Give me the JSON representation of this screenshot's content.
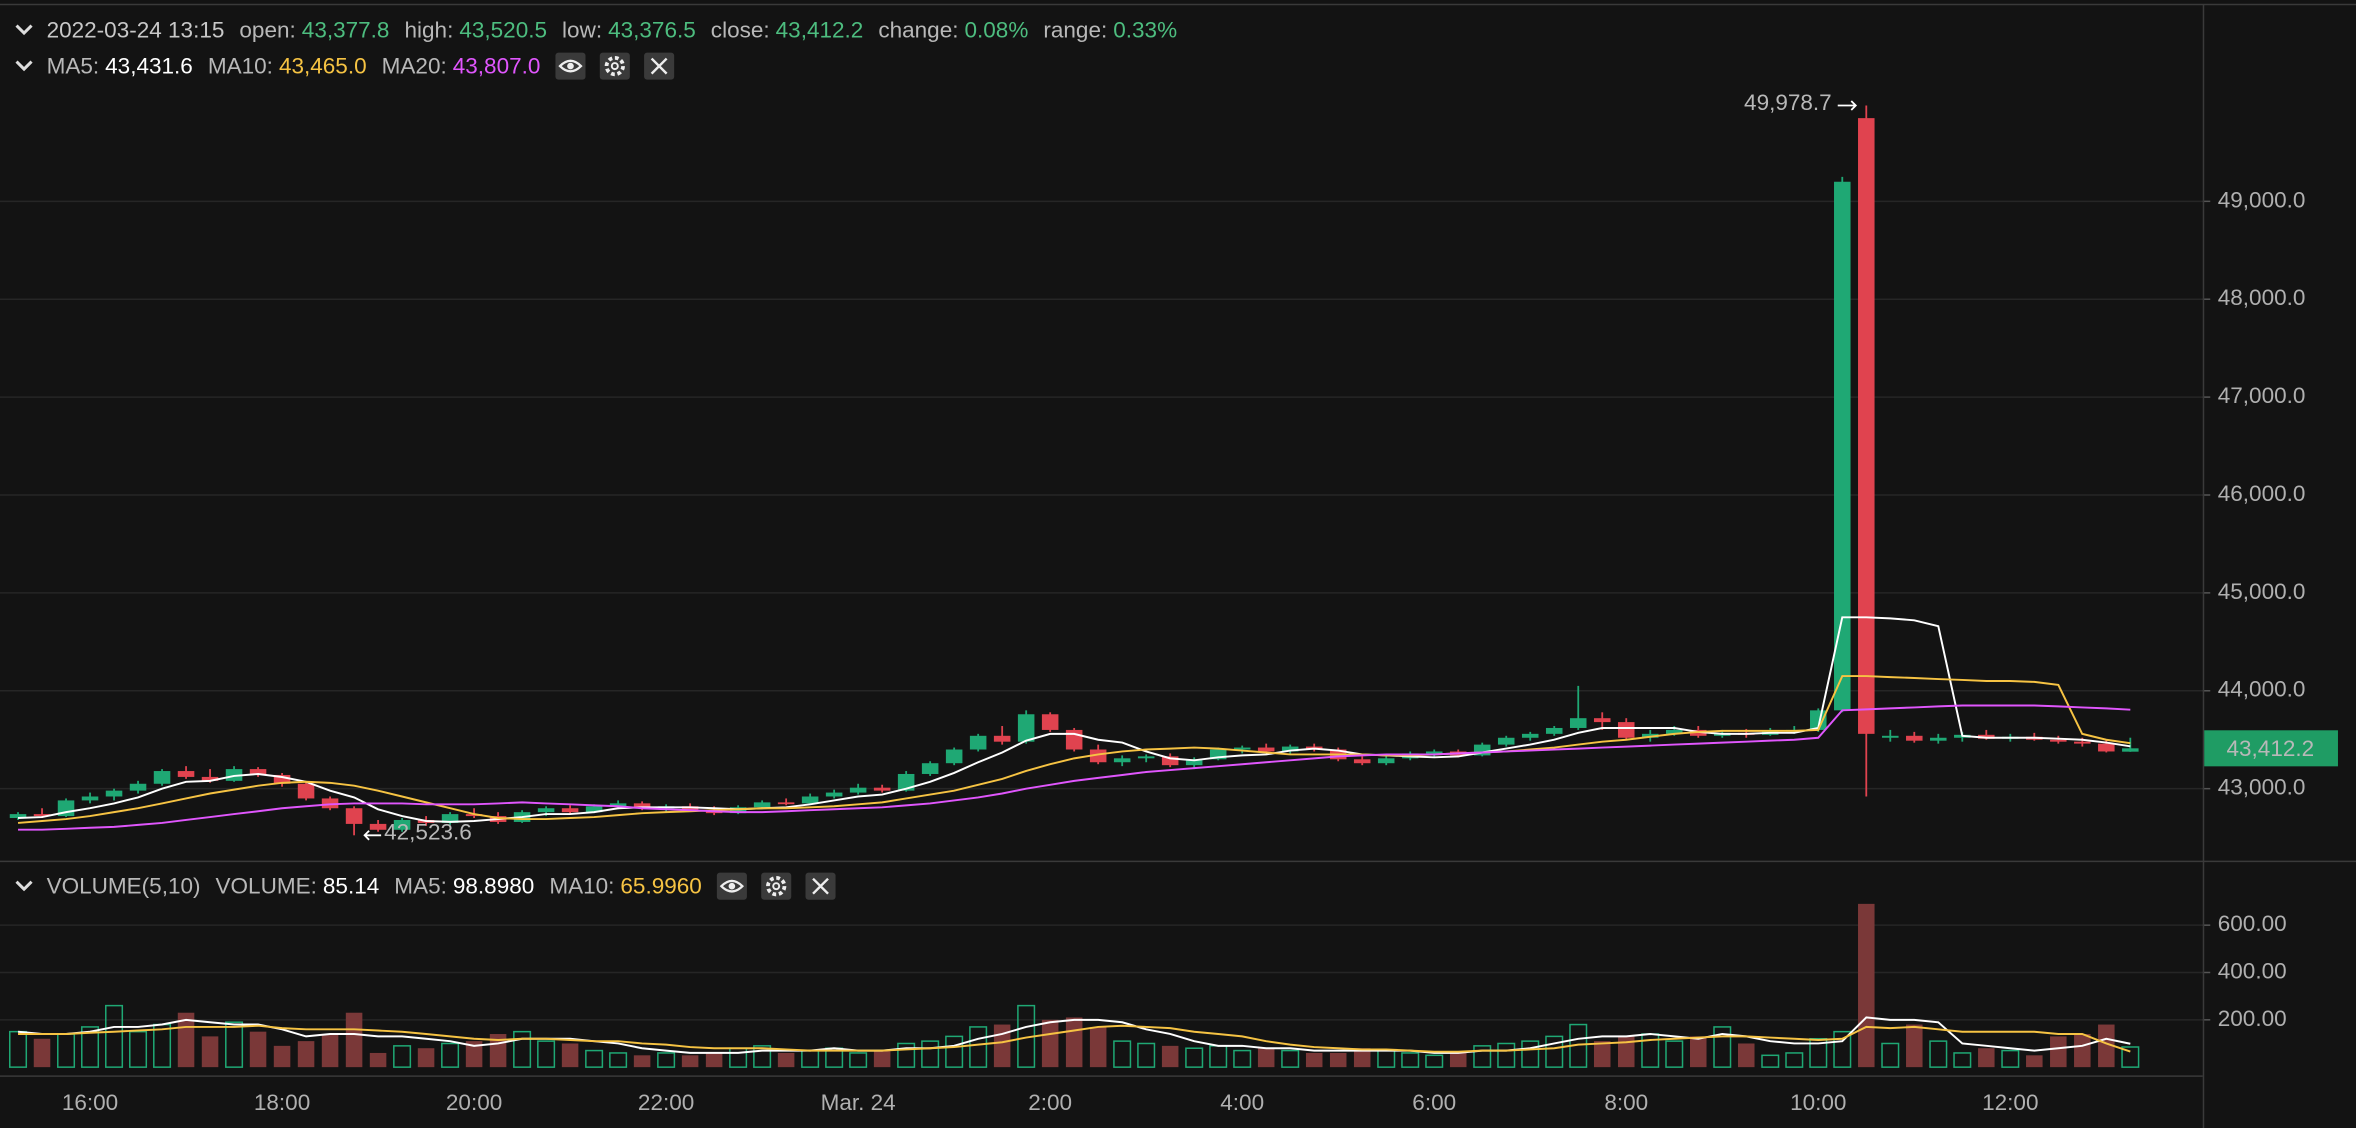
{
  "chart_data": {
    "type": "candlestick",
    "header": {
      "datetime": "2022-03-24 13:15",
      "value_color": "#4dbd7f",
      "fields": [
        {
          "label": "open:",
          "value": "43,377.8"
        },
        {
          "label": "high:",
          "value": "43,520.5"
        },
        {
          "label": "low:",
          "value": "43,376.5"
        },
        {
          "label": "close:",
          "value": "43,412.2"
        },
        {
          "label": "change:",
          "value": "0.08%"
        },
        {
          "label": "range:",
          "value": "0.33%"
        }
      ]
    },
    "up_color": "#1fa874",
    "down_color": "#e0434f",
    "volume_up_color": "#1fa874",
    "volume_down_color": "#7a3838",
    "categories": [
      null,
      null,
      null,
      "16:00",
      null,
      null,
      null,
      null,
      null,
      null,
      null,
      "18:00",
      null,
      null,
      null,
      null,
      null,
      null,
      null,
      "20:00",
      null,
      null,
      null,
      null,
      null,
      null,
      null,
      "22:00",
      null,
      null,
      null,
      null,
      null,
      null,
      null,
      "Mar. 24",
      null,
      null,
      null,
      null,
      null,
      null,
      null,
      "2:00",
      null,
      null,
      null,
      null,
      null,
      null,
      null,
      "4:00",
      null,
      null,
      null,
      null,
      null,
      null,
      null,
      "6:00",
      null,
      null,
      null,
      null,
      null,
      null,
      null,
      "8:00",
      null,
      null,
      null,
      null,
      null,
      null,
      null,
      "10:00",
      null,
      null,
      null,
      null,
      null,
      null,
      null,
      "12:00",
      null,
      null,
      null,
      null,
      null
    ],
    "open": [
      42700,
      42740,
      42720,
      42880,
      42920,
      42980,
      43050,
      43180,
      43120,
      43080,
      43200,
      43140,
      43050,
      42900,
      42800,
      42640,
      42580,
      42680,
      42650,
      42740,
      42720,
      42660,
      42760,
      42800,
      42760,
      42820,
      42850,
      42800,
      42820,
      42780,
      42750,
      42810,
      42860,
      42850,
      42920,
      42960,
      43010,
      42980,
      43150,
      43260,
      43400,
      43540,
      43480,
      43760,
      43600,
      43400,
      43270,
      43310,
      43330,
      43240,
      43300,
      43400,
      43420,
      43380,
      43430,
      43400,
      43300,
      43260,
      43310,
      43360,
      43380,
      43340,
      43450,
      43520,
      43560,
      43620,
      43720,
      43680,
      43520,
      43560,
      43600,
      43540,
      43570,
      43550,
      43590,
      43600,
      43800,
      49850,
      43520,
      43540,
      43490,
      43520,
      43550,
      43510,
      43530,
      43500,
      43480,
      43460,
      43377.8
    ],
    "high": [
      42760,
      42800,
      42900,
      42960,
      43000,
      43080,
      43200,
      43230,
      43200,
      43230,
      43220,
      43160,
      43070,
      42920,
      42820,
      42680,
      42700,
      42720,
      42760,
      42800,
      42760,
      42780,
      42820,
      42830,
      42840,
      42880,
      42870,
      42840,
      42850,
      42820,
      42830,
      42880,
      42900,
      42950,
      42990,
      43050,
      43040,
      43180,
      43280,
      43420,
      43560,
      43640,
      43800,
      43780,
      43620,
      43450,
      43340,
      43350,
      43360,
      43320,
      43420,
      43440,
      43460,
      43450,
      43460,
      43420,
      43330,
      43330,
      43380,
      43400,
      43400,
      43470,
      43540,
      43580,
      43640,
      44050,
      43780,
      43720,
      43600,
      43640,
      43640,
      43600,
      43610,
      43620,
      43640,
      43820,
      49250,
      49978.7,
      43600,
      43580,
      43560,
      43580,
      43600,
      43560,
      43570,
      43540,
      43520,
      43500,
      43520.5
    ],
    "low": [
      42680,
      42700,
      42710,
      42850,
      42880,
      42950,
      43030,
      43100,
      43060,
      43070,
      43120,
      43020,
      42880,
      42780,
      42523.6,
      42560,
      42560,
      42620,
      42630,
      42700,
      42640,
      42650,
      42720,
      42740,
      42750,
      42790,
      42780,
      42760,
      42770,
      42730,
      42740,
      42790,
      42830,
      42840,
      42900,
      42940,
      42960,
      42970,
      43130,
      43240,
      43380,
      43450,
      43460,
      43580,
      43380,
      43250,
      43230,
      43270,
      43220,
      43200,
      43290,
      43360,
      43360,
      43350,
      43380,
      43280,
      43240,
      43240,
      43290,
      43320,
      43320,
      43330,
      43430,
      43490,
      43540,
      43600,
      43600,
      43500,
      43480,
      43540,
      43520,
      43520,
      43520,
      43540,
      43560,
      43580,
      43780,
      42920,
      43480,
      43470,
      43460,
      43480,
      43500,
      43480,
      43490,
      43460,
      43430,
      43370,
      43376.5
    ],
    "close": [
      42740,
      42720,
      42880,
      42920,
      42980,
      43050,
      43180,
      43120,
      43080,
      43200,
      43140,
      43050,
      42900,
      42800,
      42640,
      42580,
      42680,
      42650,
      42740,
      42720,
      42660,
      42760,
      42800,
      42760,
      42820,
      42850,
      42800,
      42820,
      42780,
      42750,
      42810,
      42860,
      42850,
      42920,
      42960,
      43010,
      42980,
      43150,
      43260,
      43400,
      43540,
      43480,
      43760,
      43600,
      43400,
      43270,
      43310,
      43330,
      43240,
      43300,
      43400,
      43420,
      43380,
      43430,
      43400,
      43300,
      43260,
      43310,
      43360,
      43380,
      43340,
      43450,
      43520,
      43560,
      43620,
      43720,
      43680,
      43520,
      43560,
      43600,
      43540,
      43570,
      43550,
      43590,
      43600,
      43800,
      49200,
      43560,
      43540,
      43490,
      43520,
      43550,
      43510,
      43530,
      43500,
      43480,
      43460,
      43380,
      43412.2
    ],
    "ylim": [
      42280,
      50980
    ],
    "yticks": [
      {
        "value": 43000,
        "label": "43,000.0"
      },
      {
        "value": 44000,
        "label": "44,000.0"
      },
      {
        "value": 45000,
        "label": "45,000.0"
      },
      {
        "value": 46000,
        "label": "46,000.0"
      },
      {
        "value": 47000,
        "label": "47,000.0"
      },
      {
        "value": 48000,
        "label": "48,000.0"
      },
      {
        "value": 49000,
        "label": "49,000.0"
      }
    ],
    "grid": true,
    "annotations": {
      "high_label": "49,978.7",
      "low_label": "42,523.6",
      "last_price": "43,412.2",
      "last_price_color": "#1f9c64"
    },
    "ma": [
      {
        "label": "MA5:",
        "value_text": "43,431.6",
        "color": "#ffffff",
        "values": [
          42700,
          42710,
          42760,
          42800,
          42850,
          42910,
          43000,
          43070,
          43080,
          43130,
          43150,
          43120,
          43070,
          42980,
          42910,
          42790,
          42720,
          42670,
          42660,
          42670,
          42690,
          42710,
          42740,
          42740,
          42760,
          42800,
          42810,
          42810,
          42810,
          42800,
          42790,
          42800,
          42810,
          42840,
          42880,
          42920,
          42940,
          43000,
          43070,
          43160,
          43270,
          43370,
          43490,
          43560,
          43560,
          43500,
          43470,
          43380,
          43310,
          43290,
          43320,
          43340,
          43350,
          43390,
          43410,
          43390,
          43350,
          43340,
          43330,
          43320,
          43330,
          43370,
          43410,
          43450,
          43500,
          43570,
          43620,
          43620,
          43620,
          43620,
          43580,
          43560,
          43560,
          43570,
          43570,
          43620,
          44750,
          44750,
          44740,
          44720,
          44660,
          43540,
          43520,
          43520,
          43520,
          43510,
          43500,
          43470,
          43431.6
        ]
      },
      {
        "label": "MA10:",
        "value_text": "43,465.0",
        "color": "#f6c343",
        "values": [
          42650,
          42670,
          42690,
          42720,
          42760,
          42800,
          42850,
          42900,
          42950,
          42990,
          43030,
          43060,
          43070,
          43060,
          43030,
          42980,
          42920,
          42860,
          42800,
          42740,
          42700,
          42690,
          42690,
          42700,
          42710,
          42730,
          42750,
          42760,
          42770,
          42780,
          42790,
          42800,
          42800,
          42810,
          42820,
          42840,
          42860,
          42900,
          42940,
          42980,
          43040,
          43100,
          43180,
          43250,
          43310,
          43350,
          43380,
          43400,
          43410,
          43420,
          43410,
          43390,
          43370,
          43350,
          43350,
          43350,
          43350,
          43340,
          43340,
          43350,
          43360,
          43370,
          43380,
          43400,
          43420,
          43450,
          43480,
          43500,
          43530,
          43560,
          43580,
          43590,
          43590,
          43590,
          43590,
          43600,
          44150,
          44150,
          44140,
          44130,
          44120,
          44110,
          44100,
          44100,
          44090,
          44060,
          43560,
          43500,
          43465.0
        ]
      },
      {
        "label": "MA20:",
        "value_text": "43,807.0",
        "color": "#e056fd",
        "values": [
          42580,
          42580,
          42590,
          42600,
          42610,
          42630,
          42650,
          42680,
          42710,
          42740,
          42770,
          42800,
          42820,
          42840,
          42850,
          42850,
          42850,
          42840,
          42840,
          42840,
          42850,
          42860,
          42850,
          42840,
          42830,
          42820,
          42800,
          42790,
          42780,
          42770,
          42760,
          42760,
          42770,
          42780,
          42790,
          42800,
          42810,
          42830,
          42850,
          42880,
          42910,
          42950,
          43000,
          43040,
          43080,
          43110,
          43140,
          43170,
          43190,
          43210,
          43230,
          43250,
          43270,
          43290,
          43310,
          43330,
          43340,
          43350,
          43350,
          43350,
          43360,
          43370,
          43380,
          43390,
          43400,
          43410,
          43420,
          43430,
          43440,
          43450,
          43460,
          43470,
          43480,
          43490,
          43500,
          43520,
          43800,
          43810,
          43820,
          43830,
          43840,
          43850,
          43850,
          43850,
          43850,
          43840,
          43830,
          43820,
          43807.0
        ]
      }
    ],
    "volume": {
      "title": "VOLUME(5,10)",
      "label": "VOLUME:",
      "value_text": "85.14",
      "value_color": "#ffffff",
      "values": [
        150,
        120,
        140,
        170,
        260,
        150,
        180,
        230,
        130,
        190,
        150,
        90,
        110,
        140,
        230,
        60,
        90,
        80,
        100,
        110,
        140,
        150,
        110,
        100,
        70,
        60,
        50,
        60,
        50,
        60,
        80,
        90,
        60,
        70,
        80,
        60,
        70,
        100,
        110,
        130,
        170,
        180,
        260,
        200,
        210,
        170,
        110,
        100,
        90,
        80,
        90,
        70,
        80,
        70,
        60,
        60,
        80,
        70,
        60,
        50,
        60,
        90,
        100,
        110,
        130,
        180,
        110,
        130,
        140,
        110,
        130,
        170,
        100,
        50,
        60,
        120,
        150,
        690,
        100,
        180,
        110,
        60,
        80,
        70,
        50,
        130,
        140,
        180,
        85.14
      ],
      "ylim": [
        -35,
        860
      ],
      "yticks": [
        {
          "value": 200,
          "label": "200.00"
        },
        {
          "value": 400,
          "label": "400.00"
        },
        {
          "value": 600,
          "label": "600.00"
        }
      ],
      "ma": [
        {
          "label": "MA5:",
          "value_text": "98.8980",
          "color": "#ffffff",
          "values": [
            150,
            140,
            140,
            150,
            170,
            170,
            180,
            200,
            190,
            180,
            180,
            160,
            130,
            140,
            140,
            130,
            130,
            120,
            110,
            90,
            100,
            120,
            120,
            120,
            110,
            100,
            80,
            70,
            60,
            60,
            60,
            70,
            70,
            70,
            80,
            70,
            70,
            80,
            80,
            90,
            120,
            140,
            170,
            190,
            200,
            200,
            190,
            160,
            140,
            110,
            90,
            90,
            80,
            80,
            70,
            70,
            70,
            70,
            70,
            60,
            60,
            70,
            70,
            80,
            100,
            120,
            130,
            130,
            140,
            130,
            120,
            140,
            130,
            110,
            100,
            100,
            110,
            210,
            200,
            200,
            190,
            100,
            90,
            80,
            70,
            80,
            90,
            120,
            98.898
          ]
        },
        {
          "label": "MA10:",
          "value_text": "65.9960",
          "color": "#f6c343",
          "values": [
            140,
            140,
            140,
            145,
            150,
            155,
            160,
            170,
            170,
            170,
            175,
            165,
            160,
            160,
            160,
            155,
            150,
            140,
            130,
            120,
            115,
            120,
            120,
            115,
            110,
            110,
            100,
            95,
            85,
            80,
            80,
            80,
            75,
            70,
            70,
            70,
            70,
            75,
            80,
            85,
            95,
            105,
            125,
            140,
            155,
            170,
            175,
            170,
            165,
            150,
            140,
            130,
            110,
            95,
            85,
            80,
            75,
            75,
            70,
            65,
            65,
            70,
            70,
            75,
            80,
            95,
            100,
            105,
            115,
            120,
            125,
            130,
            130,
            125,
            120,
            115,
            120,
            170,
            165,
            170,
            160,
            150,
            150,
            150,
            150,
            140,
            140,
            100,
            65.996
          ]
        }
      ]
    }
  }
}
